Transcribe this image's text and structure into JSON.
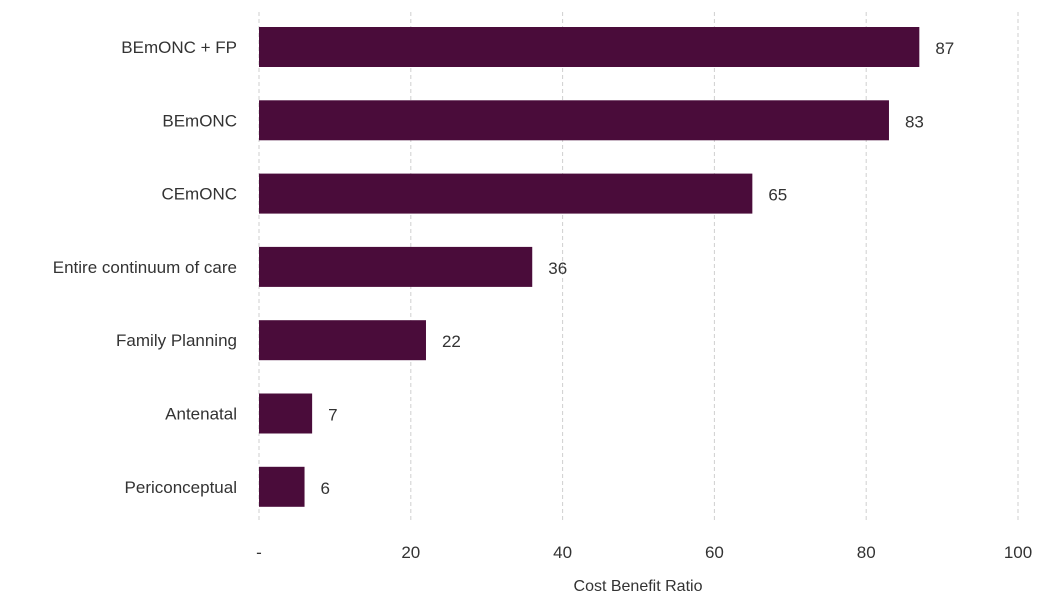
{
  "chart_data": {
    "type": "bar",
    "orientation": "horizontal",
    "categories": [
      "BEmONC + FP",
      "BEmONC",
      "CEmONC",
      "Entire continuum of care",
      "Family Planning",
      "Antenatal",
      "Periconceptual"
    ],
    "values": [
      87,
      83,
      65,
      36,
      22,
      7,
      6
    ],
    "data_labels": [
      "87",
      "83",
      "65",
      "36",
      "22",
      "7",
      "6"
    ],
    "xlabel": "Cost Benefit Ratio",
    "ylabel": "",
    "xlim": [
      0,
      100
    ],
    "x_ticks": [
      0,
      20,
      40,
      60,
      80,
      100
    ],
    "x_tick_labels": [
      "-",
      "20",
      "40",
      "60",
      "80",
      "100"
    ],
    "grid": "vertical-dashed",
    "legend": "none",
    "bar_color": "#4a0c3a"
  }
}
